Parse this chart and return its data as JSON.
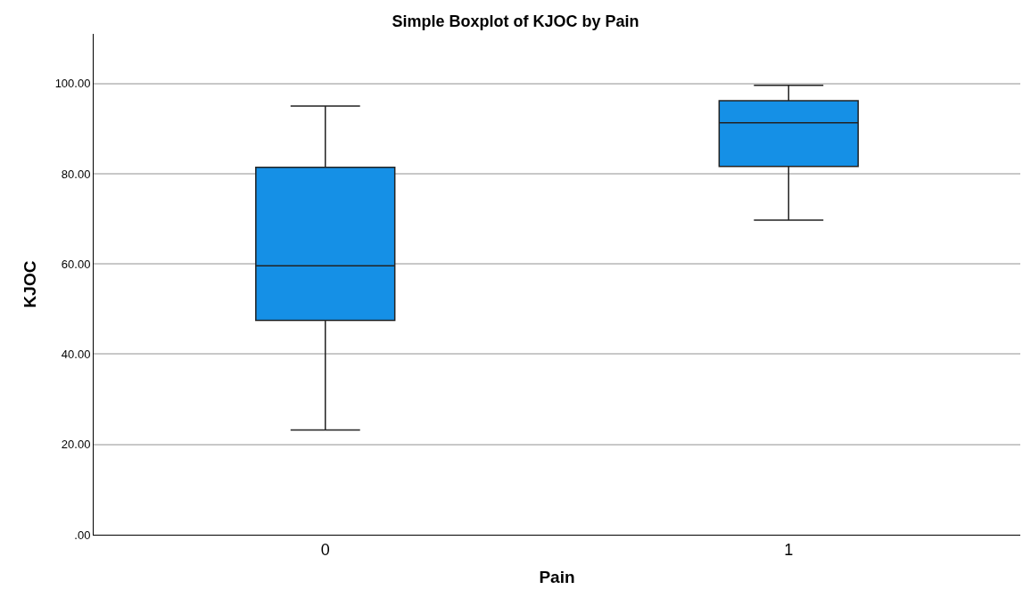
{
  "chart_data": {
    "type": "box",
    "title": "Simple Boxplot of KJOC by Pain",
    "xlabel": "Pain",
    "ylabel": "KJOC",
    "categories": [
      "0",
      "1"
    ],
    "boxes": [
      {
        "low": 23.2,
        "q1": 47.5,
        "median": 59.6,
        "q3": 81.4,
        "high": 95
      },
      {
        "low": 69.7,
        "q1": 81.6,
        "median": 91.3,
        "q3": 96.2,
        "high": 99.6
      }
    ],
    "color": "#1590e6",
    "ylim": [
      0,
      111
    ],
    "yticks": [
      {
        "value": 0,
        "label": ".00"
      },
      {
        "value": 20,
        "label": "20.00"
      },
      {
        "value": 40,
        "label": "40.00"
      },
      {
        "value": 60,
        "label": "60.00"
      },
      {
        "value": 80,
        "label": "80.00"
      },
      {
        "value": 100,
        "label": "100.00"
      }
    ],
    "grid": "y"
  }
}
